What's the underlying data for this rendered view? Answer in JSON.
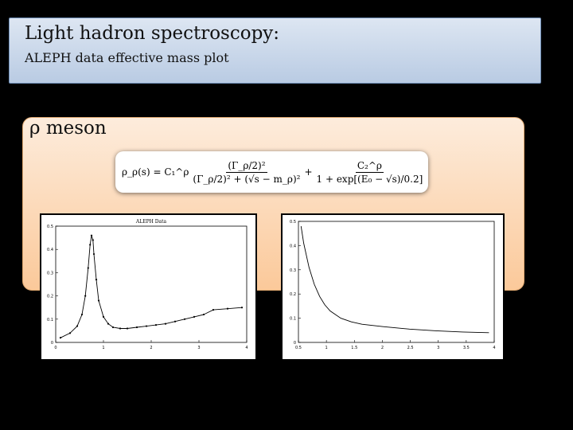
{
  "header": {
    "title": "Light hadron spectroscopy:",
    "subtitle": "ALEPH data effective mass plot"
  },
  "section": {
    "heading": "ρ meson"
  },
  "formula": {
    "lhs": "ρ_ρ(s) = C₁^ρ",
    "term1_num": "(Γ_ρ/2)²",
    "term1_den": "(Γ_ρ/2)² + (√s − m_ρ)²",
    "plus": "+",
    "term2_num": "C₂^ρ",
    "term2_den": "1 + exp[(E₀ − √s)/0.2]"
  },
  "colors": {
    "title_bg": "#c9d7ea",
    "content_bg": "#fbd3ad",
    "background": "#000000"
  },
  "chart_data": [
    {
      "type": "line",
      "title": "ALEPH Data",
      "x_ticks": [
        "0",
        "1",
        "2",
        "3",
        "4"
      ],
      "y_ticks": [
        "0",
        "0.1",
        "0.2",
        "0.3",
        "0.4",
        "0.5"
      ],
      "xlim": [
        0,
        4
      ],
      "ylim": [
        0,
        0.5
      ],
      "x": [
        0.1,
        0.3,
        0.45,
        0.55,
        0.62,
        0.68,
        0.72,
        0.75,
        0.78,
        0.8,
        0.85,
        0.9,
        1.0,
        1.1,
        1.2,
        1.35,
        1.5,
        1.7,
        1.9,
        2.1,
        2.3,
        2.5,
        2.7,
        2.9,
        3.1,
        3.3,
        3.6,
        3.9
      ],
      "series": [
        {
          "values": [
            0.02,
            0.04,
            0.07,
            0.12,
            0.2,
            0.32,
            0.42,
            0.46,
            0.44,
            0.38,
            0.27,
            0.18,
            0.11,
            0.08,
            0.065,
            0.06,
            0.06,
            0.065,
            0.07,
            0.075,
            0.08,
            0.09,
            0.1,
            0.11,
            0.12,
            0.14,
            0.145,
            0.15
          ]
        }
      ]
    },
    {
      "type": "line",
      "x_ticks": [
        "0.5",
        "1",
        "1.5",
        "2",
        "2.5",
        "3",
        "3.5",
        "4"
      ],
      "y_ticks": [
        "0",
        "0.1",
        "0.2",
        "0.3",
        "0.4",
        "0.5"
      ],
      "xlim": [
        0.4,
        4.1
      ],
      "ylim": [
        0,
        0.5
      ],
      "x": [
        0.45,
        0.5,
        0.6,
        0.7,
        0.8,
        0.9,
        1.0,
        1.2,
        1.4,
        1.6,
        1.8,
        2.0,
        2.5,
        3.0,
        3.5,
        4.0
      ],
      "series": [
        {
          "values": [
            0.48,
            0.41,
            0.31,
            0.24,
            0.19,
            0.155,
            0.13,
            0.1,
            0.085,
            0.075,
            0.07,
            0.065,
            0.055,
            0.048,
            0.043,
            0.04
          ]
        }
      ]
    }
  ]
}
